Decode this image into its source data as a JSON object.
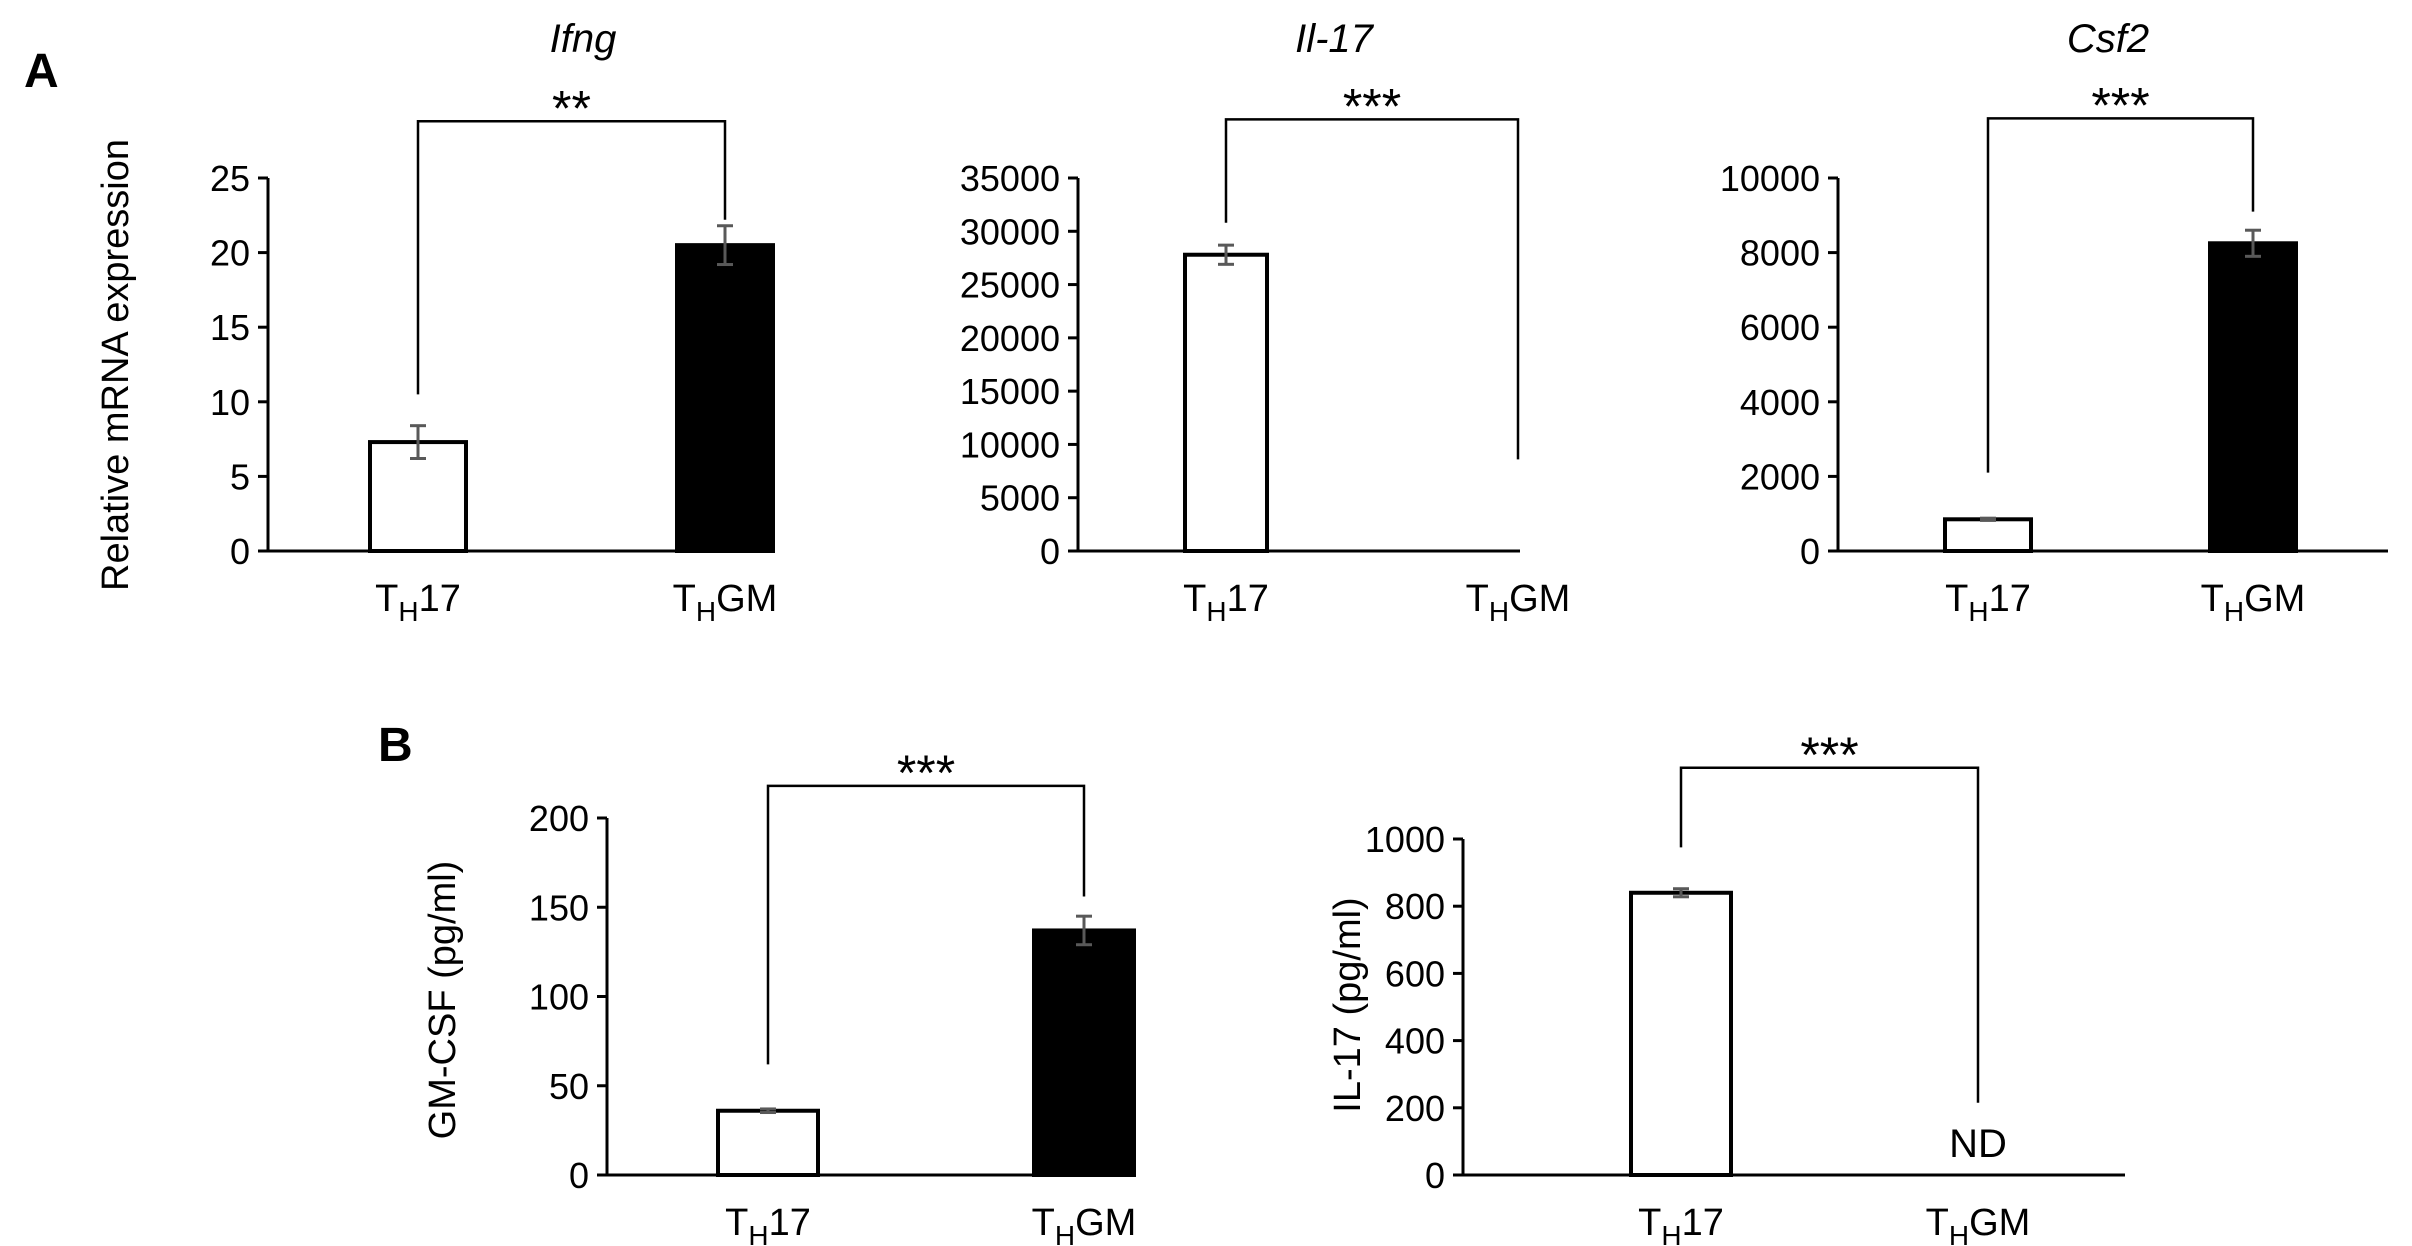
{
  "panels": {
    "a_label": "A",
    "b_label": "B"
  },
  "colors": {
    "th17_fill": "#ffffff",
    "thgm_fill": "#000000",
    "axis": "#000000",
    "error_bar": "#595959"
  },
  "category_labels": {
    "th17": {
      "main": "T",
      "sub": "H",
      "rest": "17"
    },
    "thgm": {
      "main": "T",
      "sub": "H",
      "rest": "GM"
    }
  },
  "chart_data": [
    {
      "type": "bar",
      "id": "ifng",
      "panel": "A",
      "title": "Ifng",
      "title_italic": true,
      "ylabel": "Relative mRNA expression",
      "categories": [
        "TH17",
        "THGM"
      ],
      "values": [
        7.3,
        20.5
      ],
      "errors": [
        1.1,
        1.3
      ],
      "ylim": [
        0,
        25
      ],
      "yticks": [
        "0",
        "5",
        "10",
        "15",
        "20",
        "25"
      ],
      "significance": "**",
      "bracket_start": [
        10.5,
        22.2
      ],
      "bracket_top": 28.8
    },
    {
      "type": "bar",
      "id": "il17",
      "panel": "A",
      "title": "Il-17",
      "title_italic": true,
      "ylabel": "",
      "categories": [
        "TH17",
        "THGM"
      ],
      "values": [
        27800,
        0
      ],
      "errors": [
        900,
        0
      ],
      "ylim": [
        0,
        35000
      ],
      "yticks": [
        "0",
        "5000",
        "10000",
        "15000",
        "20000",
        "25000",
        "30000",
        "35000"
      ],
      "significance": "***",
      "bracket_start": [
        30800,
        8600
      ],
      "bracket_top": 40500
    },
    {
      "type": "bar",
      "id": "csf2",
      "panel": "A",
      "title": "Csf2",
      "title_italic": true,
      "ylabel": "",
      "categories": [
        "TH17",
        "THGM"
      ],
      "values": [
        850,
        8250
      ],
      "errors": [
        30,
        350
      ],
      "ylim": [
        0,
        10000
      ],
      "yticks": [
        "0",
        "2000",
        "4000",
        "6000",
        "8000",
        "10000"
      ],
      "significance": "***",
      "bracket_start": [
        2100,
        9100
      ],
      "bracket_top": 11600
    },
    {
      "type": "bar",
      "id": "gmcsf",
      "panel": "B",
      "title": "",
      "ylabel": "GM-CSF (pg/ml)",
      "categories": [
        "TH17",
        "THGM"
      ],
      "values": [
        36,
        137
      ],
      "errors": [
        1,
        8
      ],
      "ylim": [
        0,
        200
      ],
      "yticks": [
        "0",
        "50",
        "100",
        "150",
        "200"
      ],
      "significance": "***",
      "bracket_start": [
        62,
        156
      ],
      "bracket_top": 218
    },
    {
      "type": "bar",
      "id": "il17-protein",
      "panel": "B",
      "title": "",
      "ylabel": "IL-17 (pg/ml)",
      "categories": [
        "TH17",
        "THGM"
      ],
      "values": [
        840,
        0
      ],
      "errors": [
        12,
        0
      ],
      "ylim": [
        0,
        1000
      ],
      "yticks": [
        "0",
        "200",
        "400",
        "600",
        "800",
        "1000"
      ],
      "significance": "***",
      "bracket_start": [
        975,
        215
      ],
      "bracket_top": 1212,
      "annotation": "ND"
    }
  ]
}
